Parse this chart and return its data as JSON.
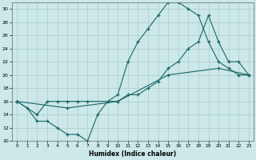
{
  "xlabel": "Humidex (Indice chaleur)",
  "bg_color": "#cce8e8",
  "grid_color": "#aacccc",
  "line_color": "#1a6666",
  "line1_x": [
    0,
    1,
    2,
    3,
    4,
    5,
    6,
    7,
    8,
    9,
    10,
    11,
    12,
    13,
    14,
    15,
    16,
    17,
    18,
    19,
    20,
    21,
    22,
    23
  ],
  "line1_y": [
    16,
    15,
    13,
    13,
    12,
    11,
    11,
    10,
    14,
    16,
    17,
    22,
    25,
    27,
    29,
    31,
    31,
    30,
    29,
    25,
    22,
    21,
    20,
    20
  ],
  "line2_x": [
    0,
    2,
    3,
    4,
    5,
    6,
    7,
    10,
    11,
    12,
    13,
    14,
    15,
    16,
    17,
    18,
    19,
    20,
    21,
    22,
    23
  ],
  "line2_y": [
    16,
    14,
    16,
    16,
    16,
    16,
    16,
    16,
    17,
    17,
    18,
    19,
    21,
    22,
    24,
    25,
    29,
    25,
    22,
    22,
    20
  ],
  "line3_x": [
    0,
    5,
    10,
    15,
    20,
    23
  ],
  "line3_y": [
    16,
    15,
    16,
    20,
    21,
    20
  ],
  "xlim": [
    -0.5,
    23.5
  ],
  "ylim": [
    10,
    31
  ],
  "xticks": [
    0,
    1,
    2,
    3,
    4,
    5,
    6,
    7,
    8,
    9,
    10,
    11,
    12,
    13,
    14,
    15,
    16,
    17,
    18,
    19,
    20,
    21,
    22,
    23
  ],
  "yticks": [
    10,
    12,
    14,
    16,
    18,
    20,
    22,
    24,
    26,
    28,
    30
  ]
}
